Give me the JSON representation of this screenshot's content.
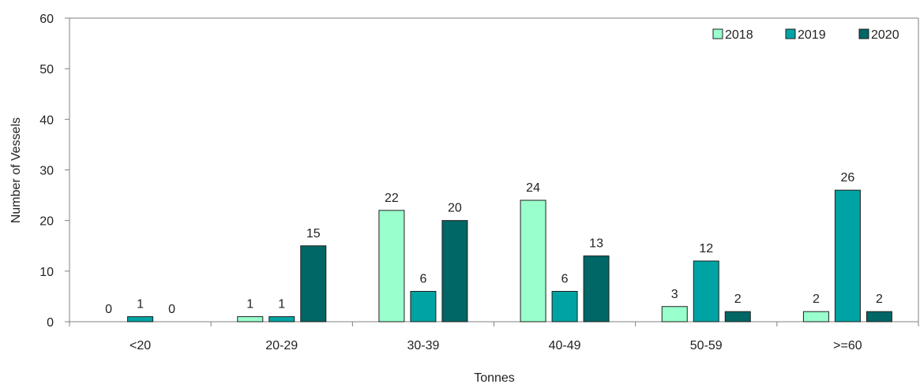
{
  "chart_data": {
    "type": "bar",
    "title": "",
    "xlabel": "Tonnes",
    "ylabel": "Number of Vessels",
    "categories": [
      "<20",
      "20-29",
      "30-39",
      "40-49",
      "50-59",
      ">=60"
    ],
    "series": [
      {
        "name": "2018",
        "values": [
          0,
          1,
          22,
          24,
          3,
          2
        ],
        "color": "#99ffcc"
      },
      {
        "name": "2019",
        "values": [
          1,
          1,
          6,
          6,
          12,
          26
        ],
        "color": "#00a3a3"
      },
      {
        "name": "2020",
        "values": [
          0,
          15,
          20,
          13,
          2,
          2
        ],
        "color": "#006666"
      }
    ],
    "ylim": [
      0,
      60
    ],
    "yticks": [
      0,
      10,
      20,
      30,
      40,
      50,
      60
    ],
    "grid": false,
    "legend_position": "top-right",
    "data_labels": true
  }
}
